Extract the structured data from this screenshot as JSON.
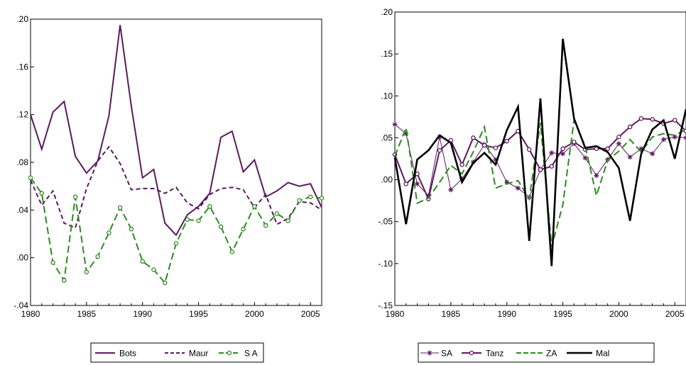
{
  "colors": {
    "purple": "#5B1A5E",
    "green": "#2E8B22",
    "black": "#000000"
  },
  "chart_data": [
    {
      "type": "line",
      "title": "",
      "xlabel": "",
      "ylabel": "",
      "xlim": [
        1980,
        2006
      ],
      "ylim": [
        -0.04,
        0.2
      ],
      "x_ticks": [
        1980,
        1985,
        1990,
        1995,
        2000,
        2005
      ],
      "x_tick_labels": [
        "1980",
        "1985",
        "1990",
        "1995",
        "2000",
        "2005"
      ],
      "y_ticks": [
        -0.04,
        0.0,
        0.04,
        0.08,
        0.12,
        0.16,
        0.2
      ],
      "y_tick_labels": [
        "-.04",
        ".00",
        ".04",
        ".08",
        ".12",
        ".16",
        ".20"
      ],
      "grid": false,
      "legend_position": "bottom",
      "x": [
        1980,
        1981,
        1982,
        1983,
        1984,
        1985,
        1986,
        1987,
        1988,
        1989,
        1990,
        1991,
        1992,
        1993,
        1994,
        1995,
        1996,
        1997,
        1998,
        1999,
        2000,
        2001,
        2002,
        2003,
        2004,
        2005,
        2006
      ],
      "series": [
        {
          "name": "Bots",
          "style": "solid",
          "marker": "none",
          "color": "#5B1A5E",
          "values": [
            0.12,
            0.091,
            0.122,
            0.131,
            0.085,
            0.071,
            0.081,
            0.119,
            0.195,
            0.127,
            0.067,
            0.074,
            0.029,
            0.019,
            0.036,
            0.043,
            0.054,
            0.101,
            0.106,
            0.072,
            0.082,
            0.051,
            0.056,
            0.063,
            0.06,
            0.062,
            0.042
          ]
        },
        {
          "name": "Maur",
          "style": "dashed",
          "marker": "none",
          "color": "#5B1A5E",
          "values": [
            0.065,
            0.044,
            0.056,
            0.029,
            0.025,
            0.058,
            0.081,
            0.093,
            0.079,
            0.057,
            0.058,
            0.058,
            0.054,
            0.059,
            0.046,
            0.041,
            0.053,
            0.058,
            0.059,
            0.057,
            0.042,
            0.053,
            0.028,
            0.033,
            0.047,
            0.046,
            0.04
          ]
        },
        {
          "name": "S A",
          "style": "dashed",
          "marker": "circle",
          "color": "#2E8B22",
          "values": [
            0.067,
            0.054,
            -0.004,
            -0.019,
            0.051,
            -0.012,
            0.001,
            0.021,
            0.042,
            0.024,
            -0.003,
            -0.01,
            -0.021,
            0.012,
            0.032,
            0.031,
            0.043,
            0.026,
            0.005,
            0.024,
            0.043,
            0.027,
            0.037,
            0.031,
            0.048,
            0.051,
            0.05
          ]
        }
      ]
    },
    {
      "type": "line",
      "title": "",
      "xlabel": "",
      "ylabel": "",
      "xlim": [
        1980,
        2006
      ],
      "ylim": [
        -0.15,
        0.2
      ],
      "x_ticks": [
        1980,
        1985,
        1990,
        1995,
        2000,
        2005
      ],
      "x_tick_labels": [
        "1980",
        "1985",
        "1990",
        "1995",
        "2000",
        "2005"
      ],
      "y_ticks": [
        -0.15,
        -0.1,
        -0.05,
        0.0,
        0.05,
        0.1,
        0.15,
        0.2
      ],
      "y_tick_labels": [
        "-.15",
        "-.10",
        "-.05",
        ".00",
        ".05",
        ".10",
        ".15",
        ".20"
      ],
      "grid": false,
      "legend_position": "bottom",
      "x": [
        1980,
        1981,
        1982,
        1983,
        1984,
        1985,
        1986,
        1987,
        1988,
        1989,
        1990,
        1991,
        1992,
        1993,
        1994,
        1995,
        1996,
        1997,
        1998,
        1999,
        2000,
        2001,
        2002,
        2003,
        2004,
        2005,
        2006
      ],
      "series": [
        {
          "name": "SA",
          "style": "solid-thin",
          "marker": "star",
          "color": "#5B1A5E",
          "values": [
            0.066,
            0.055,
            -0.005,
            -0.019,
            0.051,
            -0.012,
            0.001,
            0.021,
            0.042,
            0.024,
            -0.003,
            -0.01,
            -0.021,
            0.012,
            0.032,
            0.031,
            0.043,
            0.026,
            0.005,
            0.024,
            0.043,
            0.027,
            0.037,
            0.031,
            0.048,
            0.051,
            0.05
          ]
        },
        {
          "name": "Tanz",
          "style": "solid",
          "marker": "circle",
          "color": "#5B1A5E",
          "values": [
            0.03,
            -0.005,
            0.007,
            -0.023,
            0.035,
            0.047,
            0.018,
            0.05,
            0.041,
            0.038,
            0.046,
            0.058,
            0.036,
            0.012,
            0.016,
            0.037,
            0.045,
            0.036,
            0.037,
            0.037,
            0.051,
            0.063,
            0.073,
            0.072,
            0.067,
            0.071,
            0.058
          ]
        },
        {
          "name": "ZA",
          "style": "dashed",
          "marker": "none",
          "color": "#2E8B22",
          "values": [
            0.028,
            0.062,
            -0.028,
            -0.022,
            -0.003,
            0.017,
            0.007,
            0.033,
            0.063,
            -0.01,
            -0.005,
            -0.001,
            -0.023,
            0.068,
            -0.08,
            -0.03,
            0.071,
            0.04,
            -0.019,
            0.023,
            0.034,
            0.048,
            0.033,
            0.051,
            0.055,
            0.053,
            0.06
          ]
        },
        {
          "name": "Mal",
          "style": "solid-thick",
          "marker": "none",
          "color": "#000000",
          "values": [
            0.026,
            -0.053,
            0.024,
            0.035,
            0.053,
            0.044,
            -0.003,
            0.02,
            0.032,
            0.018,
            0.059,
            0.087,
            -0.073,
            0.097,
            -0.103,
            0.168,
            0.073,
            0.038,
            0.04,
            0.033,
            0.014,
            -0.049,
            0.031,
            0.06,
            0.071,
            0.025,
            0.084
          ]
        }
      ]
    }
  ]
}
